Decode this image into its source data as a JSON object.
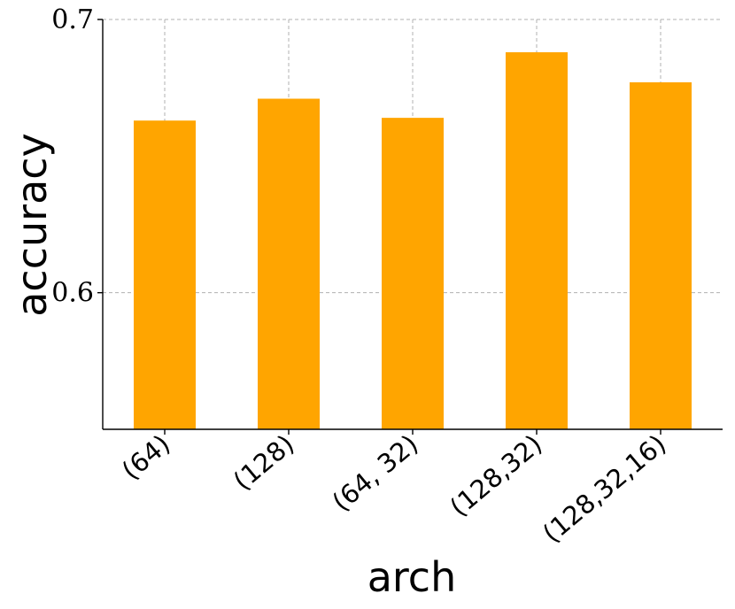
{
  "chart_data": {
    "type": "bar",
    "categories": [
      "(64)",
      "(128)",
      "(64, 32)",
      "(128,32)",
      "(128,32,16)"
    ],
    "values": [
      0.663,
      0.671,
      0.664,
      0.688,
      0.677
    ],
    "xlabel": "arch",
    "ylabel": "accuracy",
    "ylim": [
      0.55,
      0.7
    ],
    "yticks": [
      0.6,
      0.7
    ],
    "ytick_labels": [
      "0.6",
      "0.7"
    ],
    "grid": true,
    "bar_color": "#FFA500",
    "grid_color": "#b0b0b0",
    "axis_color": "#000000"
  }
}
